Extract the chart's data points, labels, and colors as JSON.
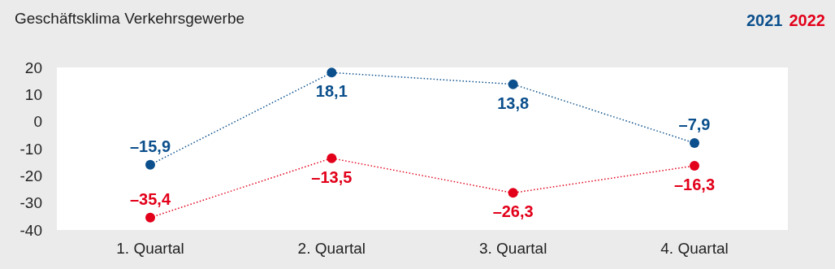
{
  "chart_data": {
    "type": "line",
    "title": "Geschäftsklima Verkehrsgewerbe",
    "categories": [
      "1. Quartal",
      "2. Quartal",
      "3. Quartal",
      "4. Quartal"
    ],
    "series": [
      {
        "name": "2021",
        "color": "#0b4f8c",
        "values": [
          -15.9,
          18.1,
          13.8,
          -7.9
        ],
        "value_labels": [
          "–15,9",
          "18,1",
          "13,8",
          "–7,9"
        ]
      },
      {
        "name": "2022",
        "color": "#e2001a",
        "values": [
          -35.4,
          -13.5,
          -26.3,
          -16.3
        ],
        "value_labels": [
          "–35,4",
          "–13,5",
          "–26,3",
          "–16,3"
        ]
      }
    ],
    "ylim": [
      -40,
      20
    ],
    "yticks": [
      -40,
      -30,
      -20,
      -10,
      0,
      10,
      20
    ],
    "legend": "top right",
    "marker": "circle",
    "line_style": "dotted"
  }
}
